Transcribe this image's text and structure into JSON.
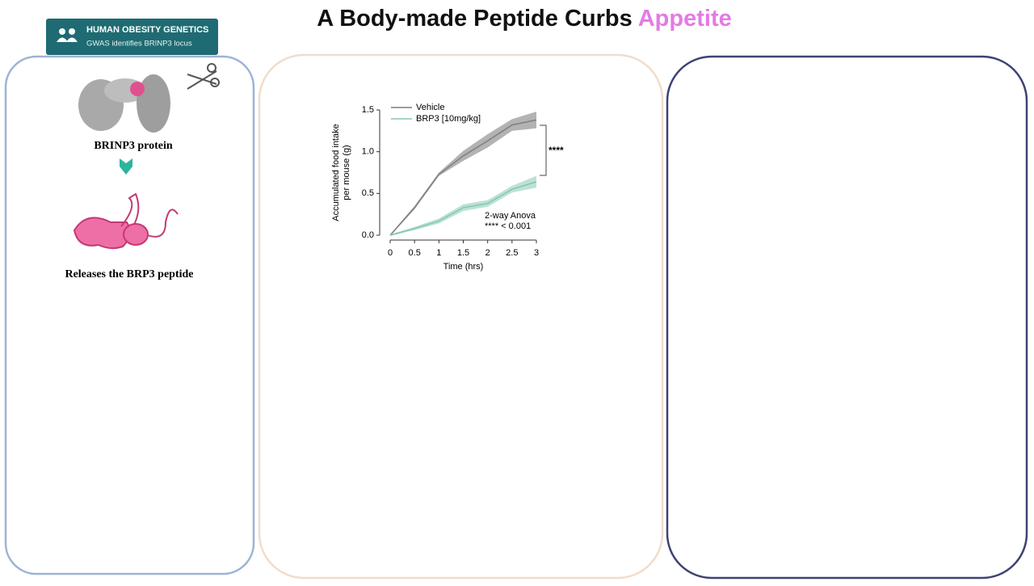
{
  "header": {
    "title_parts": [
      "A Body-made Peptide Curbs ",
      "Appetite"
    ]
  },
  "badge": {
    "title": "HUMAN OBESITY GENETICS",
    "subtitle": "GWAS identifies BRINP3 locus"
  },
  "left_panel": {
    "protein_label": "BRINP3 protein",
    "peptide_label": "Releases the BRP3 peptide"
  },
  "chart_data": {
    "type": "line",
    "x_label": "Time (hrs)",
    "y_label": [
      "Accumulated food intake",
      "per mouse (g)"
    ],
    "x": [
      0,
      0.5,
      1,
      1.5,
      2,
      2.5,
      3
    ],
    "series": [
      {
        "name": "Vehicle",
        "color": "#7f7f7f",
        "band_color": "#9a9a9a",
        "values": [
          0,
          0.33,
          0.73,
          0.95,
          1.13,
          1.32,
          1.38
        ],
        "errors": [
          0.01,
          0.02,
          0.02,
          0.06,
          0.08,
          0.07,
          0.1
        ]
      },
      {
        "name": "BRP3 [10mg/kg]",
        "color": "#86c6b2",
        "band_color": "#a6d8c6",
        "values": [
          0,
          0.08,
          0.17,
          0.33,
          0.38,
          0.55,
          0.64
        ],
        "errors": [
          0.01,
          0.02,
          0.03,
          0.04,
          0.04,
          0.04,
          0.07
        ]
      }
    ],
    "xlim": [
      0,
      3
    ],
    "ylim": [
      0,
      1.5
    ],
    "xticks": [
      0,
      0.5,
      1,
      1.5,
      2,
      2.5,
      3
    ],
    "yticks": [
      {
        "value": 0,
        "label": "0.0"
      },
      {
        "value": 0.5,
        "label": "0.5"
      },
      {
        "value": 1,
        "label": "1.0"
      },
      {
        "value": 1.5,
        "label": "1.5"
      }
    ],
    "annotations": [
      "****",
      "2-way Anova",
      "**** < 0.001"
    ]
  }
}
